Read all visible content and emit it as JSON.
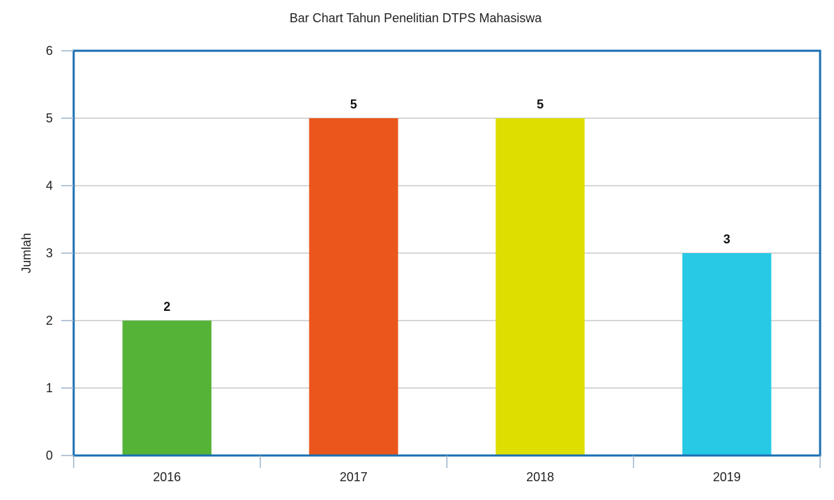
{
  "chart_data": {
    "type": "bar",
    "title": "Bar Chart Tahun Penelitian DTPS Mahasiswa",
    "xlabel": "",
    "ylabel": "Jumlah",
    "categories": [
      "2016",
      "2017",
      "2018",
      "2019"
    ],
    "values": [
      2,
      5,
      5,
      3
    ],
    "colors": [
      "#55b337",
      "#ea561c",
      "#dedf00",
      "#27c9e5"
    ],
    "ylim": [
      0,
      6
    ],
    "yticks": [
      0,
      1,
      2,
      3,
      4,
      5,
      6
    ],
    "ytick_labels": [
      "0",
      "1",
      "2",
      "3",
      "4",
      "5",
      "6"
    ],
    "data_labels": [
      "2",
      "5",
      "5",
      "3"
    ],
    "grid": true,
    "frame_color": "#1a6fb3"
  }
}
